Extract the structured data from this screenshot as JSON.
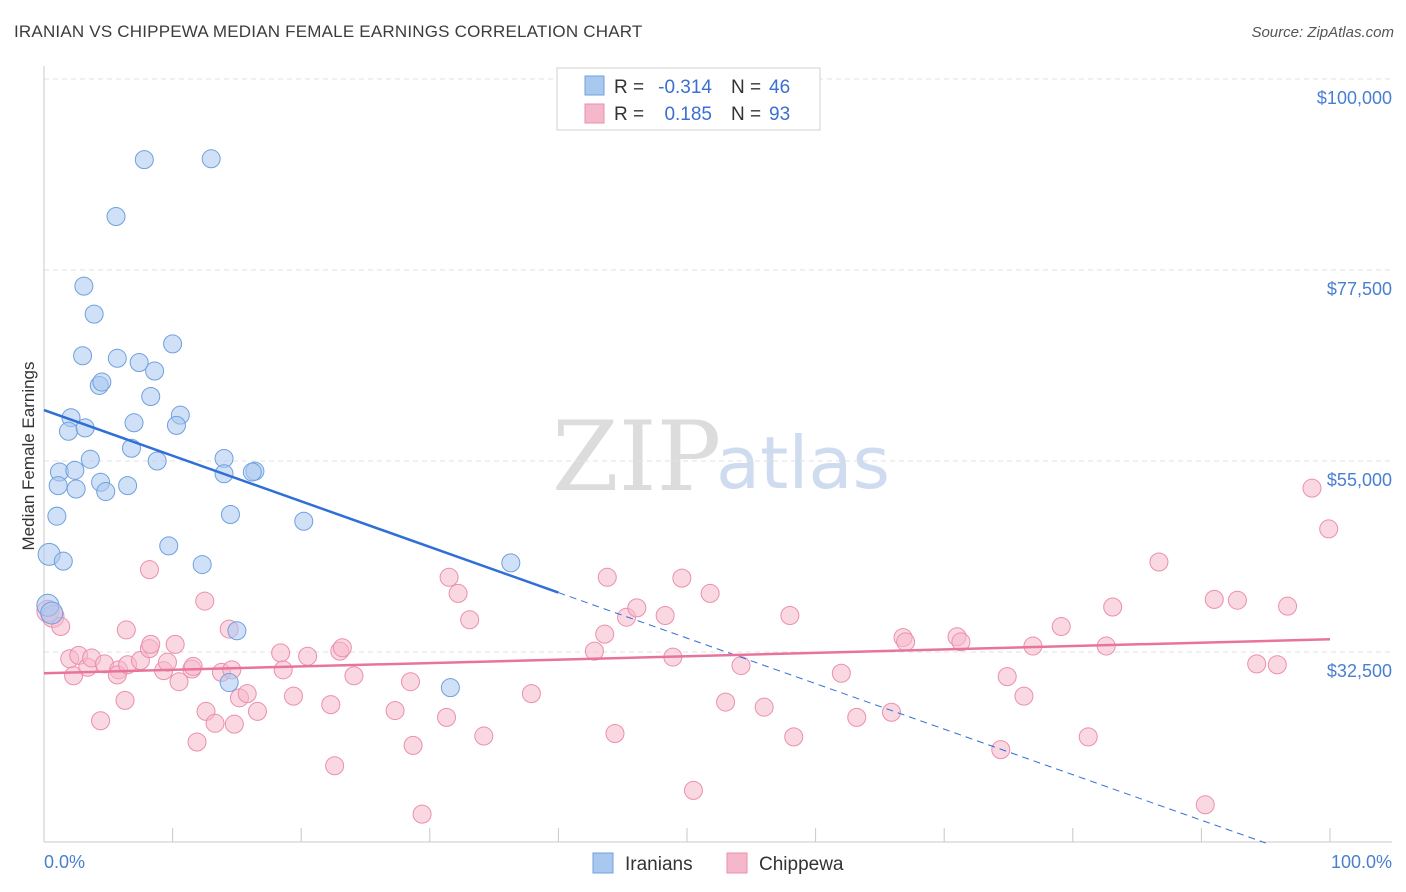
{
  "header": {
    "title": "IRANIAN VS CHIPPEWA MEDIAN FEMALE EARNINGS CORRELATION CHART",
    "source": "Source: ZipAtlas.com"
  },
  "watermark": {
    "zip": "ZIP",
    "atlas": "atlas"
  },
  "legend_top": [
    {
      "r_label": "R =",
      "r_value": "-0.314",
      "n_label": "N =",
      "n_value": "46",
      "color": "#a9c8f0"
    },
    {
      "r_label": "R =",
      "r_value": "0.185",
      "n_label": "N =",
      "n_value": "93",
      "color": "#f5b8cb"
    }
  ],
  "legend_bottom": [
    {
      "label": "Iranians",
      "color": "#a9c8f0"
    },
    {
      "label": "Chippewa",
      "color": "#f5b8cb"
    }
  ],
  "chart_data": {
    "type": "scatter",
    "title": "IRANIAN VS CHIPPEWA MEDIAN FEMALE EARNINGS CORRELATION CHART",
    "xlabel": "",
    "ylabel": "Median Female Earnings",
    "xlim": [
      0,
      100
    ],
    "ylim": [
      10000,
      102000
    ],
    "x_tick_labels": [
      "0.0%",
      "100.0%"
    ],
    "y_ticks": [
      32500,
      55000,
      77500,
      100000
    ],
    "y_tick_labels": [
      "$32,500",
      "$55,000",
      "$77,500",
      "$100,000"
    ],
    "grid": true,
    "legend_position": "top-center",
    "series": [
      {
        "name": "Iranians",
        "color": "#a9c8f0",
        "stroke": "#6fa0de",
        "line_color": "#2f6fd6",
        "r": -0.314,
        "n": 46,
        "trend": {
          "x": [
            0,
            40
          ],
          "y": [
            61000,
            39500
          ]
        },
        "trend_extension": {
          "x": [
            40,
            95
          ],
          "y": [
            39500,
            10000
          ]
        },
        "points": [
          [
            7.8,
            90.5
          ],
          [
            13,
            90.6
          ],
          [
            5.6,
            83.8
          ],
          [
            3.1,
            75.6
          ],
          [
            3.9,
            72.3
          ],
          [
            10,
            68.8
          ],
          [
            3,
            67.4
          ],
          [
            5.7,
            67.1
          ],
          [
            7.4,
            66.6
          ],
          [
            4.3,
            63.9
          ],
          [
            8.6,
            65.6
          ],
          [
            4.5,
            64.3
          ],
          [
            8.3,
            62.6
          ],
          [
            2.1,
            60.1
          ],
          [
            10.6,
            60.4
          ],
          [
            1.9,
            58.5
          ],
          [
            7,
            59.5
          ],
          [
            10.3,
            59.2
          ],
          [
            3.2,
            58.9
          ],
          [
            6.8,
            56.5
          ],
          [
            3.6,
            55.2
          ],
          [
            8.8,
            55.0
          ],
          [
            14,
            55.3
          ],
          [
            1.2,
            53.7
          ],
          [
            2.4,
            53.9
          ],
          [
            14,
            53.5
          ],
          [
            16.4,
            53.8
          ],
          [
            16.2,
            53.7
          ],
          [
            1.1,
            52.1
          ],
          [
            4.4,
            52.5
          ],
          [
            4.8,
            51.4
          ],
          [
            2.5,
            51.7
          ],
          [
            6.5,
            52.1
          ],
          [
            1,
            48.5
          ],
          [
            14.5,
            48.7
          ],
          [
            20.2,
            47.9
          ],
          [
            0.4,
            44.0
          ],
          [
            1.5,
            43.2
          ],
          [
            9.7,
            45.0
          ],
          [
            12.3,
            42.8
          ],
          [
            36.3,
            43.0
          ],
          [
            0.3,
            38.0
          ],
          [
            0.6,
            37.1
          ],
          [
            15,
            35.0
          ],
          [
            14.4,
            28.9
          ],
          [
            31.6,
            28.3
          ]
        ]
      },
      {
        "name": "Chippewa",
        "color": "#f5b8cb",
        "stroke": "#eb8fae",
        "line_color": "#e8749d",
        "r": 0.185,
        "n": 93,
        "trend": {
          "x": [
            0,
            100
          ],
          "y": [
            30000,
            34000
          ]
        },
        "points": [
          [
            0.3,
            37.3
          ],
          [
            0.7,
            36.7
          ],
          [
            1.3,
            35.5
          ],
          [
            2,
            31.7
          ],
          [
            2.3,
            29.7
          ],
          [
            2.7,
            32.1
          ],
          [
            3.4,
            30.7
          ],
          [
            3.7,
            31.8
          ],
          [
            4.4,
            24.4
          ],
          [
            4.7,
            31.1
          ],
          [
            5.8,
            30.4
          ],
          [
            5.7,
            29.8
          ],
          [
            6.3,
            26.8
          ],
          [
            6.5,
            31.0
          ],
          [
            6.4,
            35.1
          ],
          [
            7.5,
            31.5
          ],
          [
            8.2,
            42.2
          ],
          [
            8.2,
            32.9
          ],
          [
            8.3,
            33.4
          ],
          [
            9.3,
            30.3
          ],
          [
            9.6,
            31.3
          ],
          [
            10.2,
            33.4
          ],
          [
            10.5,
            29.0
          ],
          [
            11.5,
            30.5
          ],
          [
            11.9,
            21.9
          ],
          [
            11.6,
            30.8
          ],
          [
            12.5,
            38.5
          ],
          [
            12.6,
            25.5
          ],
          [
            13.3,
            24.1
          ],
          [
            13.8,
            30.1
          ],
          [
            14.4,
            35.2
          ],
          [
            14.6,
            30.4
          ],
          [
            14.8,
            24.0
          ],
          [
            15.2,
            27.1
          ],
          [
            15.8,
            27.6
          ],
          [
            16.6,
            25.5
          ],
          [
            18.4,
            32.4
          ],
          [
            18.6,
            30.4
          ],
          [
            19.4,
            27.3
          ],
          [
            20.5,
            32.0
          ],
          [
            22.3,
            26.3
          ],
          [
            22.6,
            19.1
          ],
          [
            23,
            32.6
          ],
          [
            23.2,
            33.0
          ],
          [
            24.1,
            29.7
          ],
          [
            27.3,
            25.6
          ],
          [
            28.5,
            29.0
          ],
          [
            28.7,
            21.5
          ],
          [
            29.4,
            13.4
          ],
          [
            31.3,
            24.8
          ],
          [
            31.5,
            41.3
          ],
          [
            32.2,
            39.4
          ],
          [
            33.1,
            36.3
          ],
          [
            34.2,
            22.6
          ],
          [
            37.9,
            27.6
          ],
          [
            42.8,
            32.6
          ],
          [
            43.8,
            41.3
          ],
          [
            43.6,
            34.6
          ],
          [
            44.4,
            22.9
          ],
          [
            45.3,
            36.6
          ],
          [
            46.1,
            37.7
          ],
          [
            48.3,
            36.8
          ],
          [
            48.9,
            31.9
          ],
          [
            49.6,
            41.2
          ],
          [
            50.5,
            16.2
          ],
          [
            51.8,
            39.4
          ],
          [
            53,
            26.6
          ],
          [
            54.2,
            30.9
          ],
          [
            56,
            26.0
          ],
          [
            58.3,
            22.5
          ],
          [
            58,
            36.8
          ],
          [
            62,
            30.0
          ],
          [
            63.2,
            24.8
          ],
          [
            65.9,
            25.4
          ],
          [
            66.8,
            34.2
          ],
          [
            67,
            33.7
          ],
          [
            71,
            34.3
          ],
          [
            71.3,
            33.7
          ],
          [
            74.4,
            21.0
          ],
          [
            74.9,
            29.6
          ],
          [
            76.2,
            27.3
          ],
          [
            76.9,
            33.2
          ],
          [
            79.1,
            35.5
          ],
          [
            81.2,
            22.5
          ],
          [
            82.6,
            33.2
          ],
          [
            83.1,
            37.8
          ],
          [
            86.7,
            43.1
          ],
          [
            90.3,
            14.5
          ],
          [
            91,
            38.7
          ],
          [
            92.8,
            38.6
          ],
          [
            94.3,
            31.1
          ],
          [
            95.9,
            31.0
          ],
          [
            96.7,
            37.9
          ],
          [
            98.6,
            51.8
          ],
          [
            99.9,
            47.0
          ]
        ]
      }
    ]
  }
}
